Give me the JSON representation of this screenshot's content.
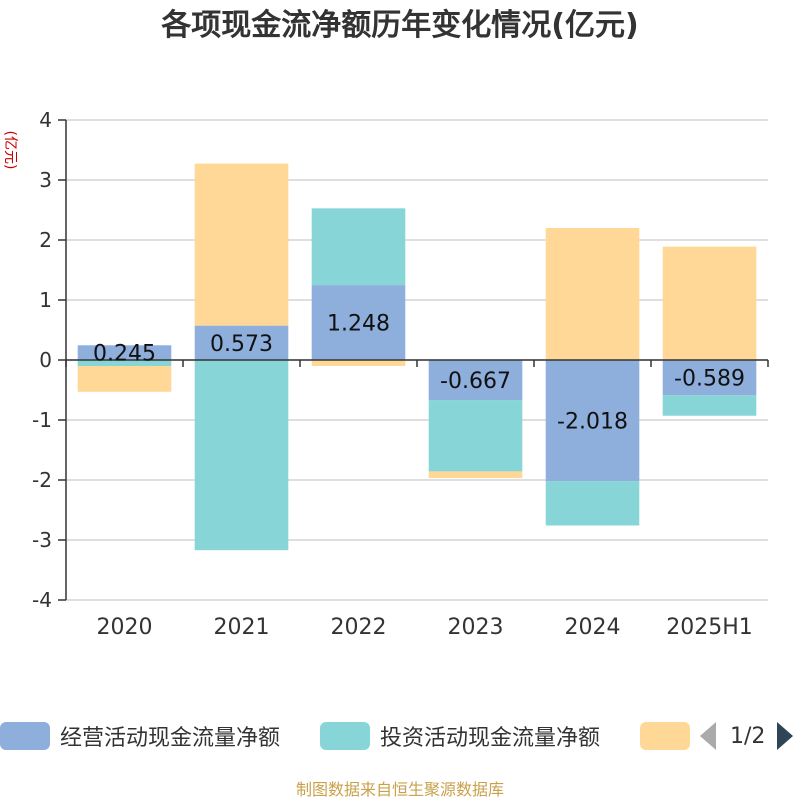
{
  "title": "各项现金流净额历年变化情况(亿元)",
  "unit_label": "(亿元)",
  "source": "制图数据来自恒生聚源数据库",
  "legend": {
    "items": [
      {
        "label": "经营活动现金流量净额",
        "color": "#8eaedb"
      },
      {
        "label": "投资活动现金流量净额",
        "color": "#88d5d8"
      },
      {
        "label": "",
        "color": "#ffd898"
      }
    ],
    "page": "1/2"
  },
  "chart_data": {
    "type": "bar",
    "stacked": true,
    "categories": [
      "2020",
      "2021",
      "2022",
      "2023",
      "2024",
      "2025H1"
    ],
    "ylim": [
      -4,
      4
    ],
    "yticks": [
      -4,
      -3,
      -2,
      -1,
      0,
      1,
      2,
      3,
      4
    ],
    "grid": true,
    "legend_position": "bottom",
    "series": [
      {
        "name": "经营活动现金流量净额",
        "color": "#8eaedb",
        "values": [
          0.245,
          0.573,
          1.248,
          -0.667,
          -2.018,
          -0.589
        ],
        "labels": [
          "0.245",
          "0.573",
          "1.248",
          "-0.667",
          "-2.018",
          "-0.589"
        ]
      },
      {
        "name": "投资活动现金流量净额",
        "color": "#88d5d8",
        "values": [
          -0.1,
          -3.17,
          1.28,
          -1.19,
          -0.74,
          -0.34
        ]
      },
      {
        "color": "#ffd898",
        "values": [
          -0.43,
          2.7,
          -0.1,
          -0.11,
          2.2,
          1.89
        ]
      }
    ]
  }
}
